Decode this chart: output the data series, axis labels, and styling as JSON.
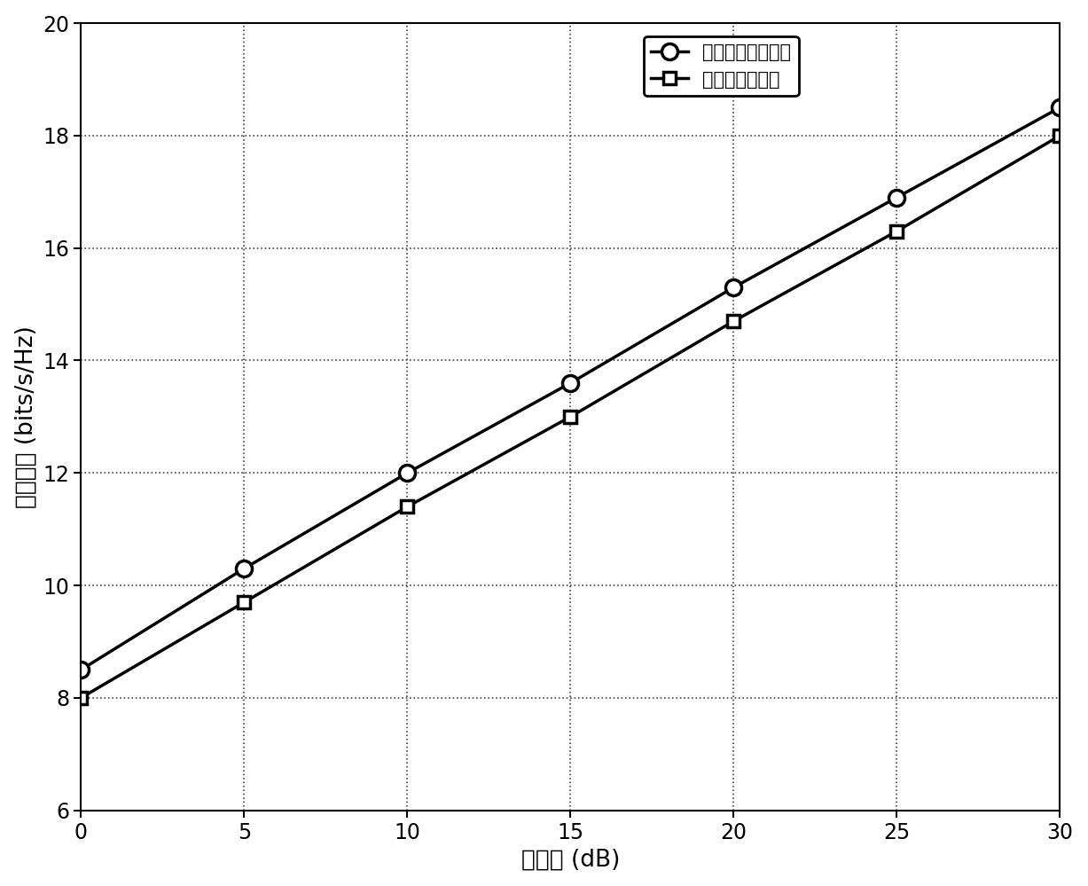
{
  "x": [
    0,
    5,
    10,
    15,
    20,
    25,
    30
  ],
  "series1_y": [
    8.5,
    10.3,
    12.0,
    13.6,
    15.3,
    16.9,
    18.5
  ],
  "series2_y": [
    8.0,
    9.7,
    11.4,
    13.0,
    14.7,
    16.3,
    18.0
  ],
  "series1_label": "全数字预编码方法",
  "series2_label": "本发明提出方法",
  "xlabel": "信噪比 (dB)",
  "ylabel": "频谱效率 (bits/s/Hz)",
  "xlim": [
    0,
    30
  ],
  "ylim": [
    6,
    20
  ],
  "xticks": [
    0,
    5,
    10,
    15,
    20,
    25,
    30
  ],
  "yticks": [
    6,
    8,
    10,
    12,
    14,
    16,
    18,
    20
  ],
  "line_color": "#000000",
  "background_color": "#ffffff",
  "legend_fontsize": 15,
  "axis_fontsize": 19,
  "tick_fontsize": 17
}
